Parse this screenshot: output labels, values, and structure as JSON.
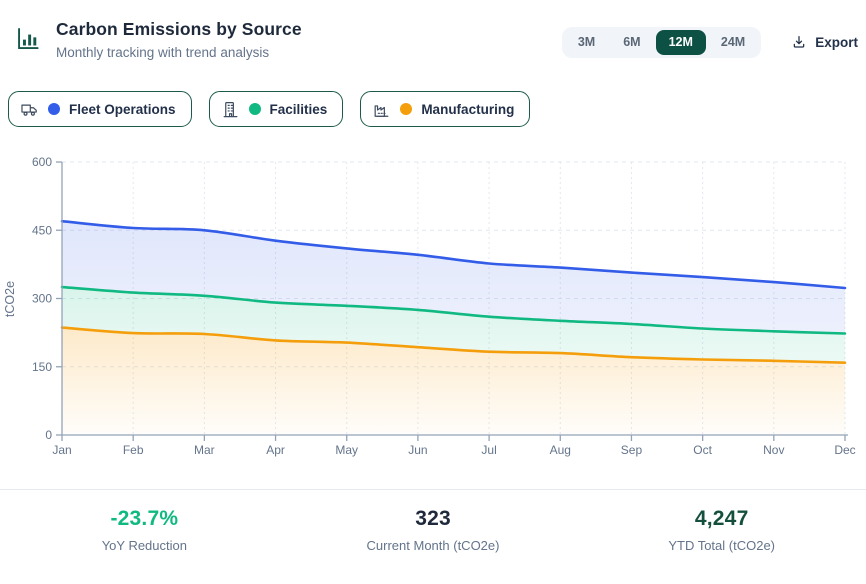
{
  "header": {
    "title": "Carbon Emissions by Source",
    "subtitle": "Monthly tracking with trend analysis"
  },
  "toolbar": {
    "ranges": [
      {
        "label": "3M",
        "selected": false
      },
      {
        "label": "6M",
        "selected": false
      },
      {
        "label": "12M",
        "selected": true
      },
      {
        "label": "24M",
        "selected": false
      }
    ],
    "export_label": "Export"
  },
  "legend": [
    {
      "label": "Fleet Operations",
      "color": "#335ce8",
      "icon": "truck-icon"
    },
    {
      "label": "Facilities",
      "color": "#10b981",
      "icon": "building-icon"
    },
    {
      "label": "Manufacturing",
      "color": "#f59e0b",
      "icon": "factory-icon"
    }
  ],
  "chart_data": {
    "type": "area",
    "stacked": false,
    "title": "Carbon Emissions by Source",
    "categories": [
      "Jan",
      "Feb",
      "Mar",
      "Apr",
      "May",
      "Jun",
      "Jul",
      "Aug",
      "Sep",
      "Oct",
      "Nov",
      "Dec"
    ],
    "series": [
      {
        "name": "Fleet Operations",
        "color": "#335ce8",
        "values": [
          470,
          455,
          450,
          427,
          410,
          396,
          377,
          368,
          357,
          347,
          336,
          323
        ],
        "fill_opacity": [
          0.15,
          0.09
        ]
      },
      {
        "name": "Facilities",
        "color": "#10b981",
        "values": [
          325,
          313,
          306,
          291,
          284,
          275,
          260,
          251,
          244,
          234,
          228,
          223
        ],
        "fill_opacity": [
          0.16,
          0.08
        ]
      },
      {
        "name": "Manufacturing",
        "color": "#f59e0b",
        "values": [
          236,
          224,
          222,
          208,
          203,
          193,
          183,
          180,
          171,
          166,
          163,
          159
        ],
        "fill_opacity": [
          0.22,
          0.02
        ]
      }
    ],
    "xlabel": "",
    "ylabel": "tCO2e",
    "ylim": [
      0,
      600
    ],
    "yticks": [
      0,
      150,
      300,
      450,
      600
    ],
    "grid": true,
    "legend_position": "top"
  },
  "stats": [
    {
      "value": "-23.7%",
      "label": "YoY Reduction",
      "color": "#10b981"
    },
    {
      "value": "323",
      "label": "Current Month (tCO2e)",
      "color": "#1e293b"
    },
    {
      "value": "4,247",
      "label": "YTD Total (tCO2e)",
      "color": "#15503e"
    }
  ],
  "colors": {
    "accent_dark_green": "#0d5044",
    "chip_border": "#1d5a4b",
    "axis": "#94a3b8",
    "grid": "#e2e8f0",
    "title_text": "#1e2a3b",
    "muted_text": "#64748b",
    "divider": "#e6eaf0"
  }
}
